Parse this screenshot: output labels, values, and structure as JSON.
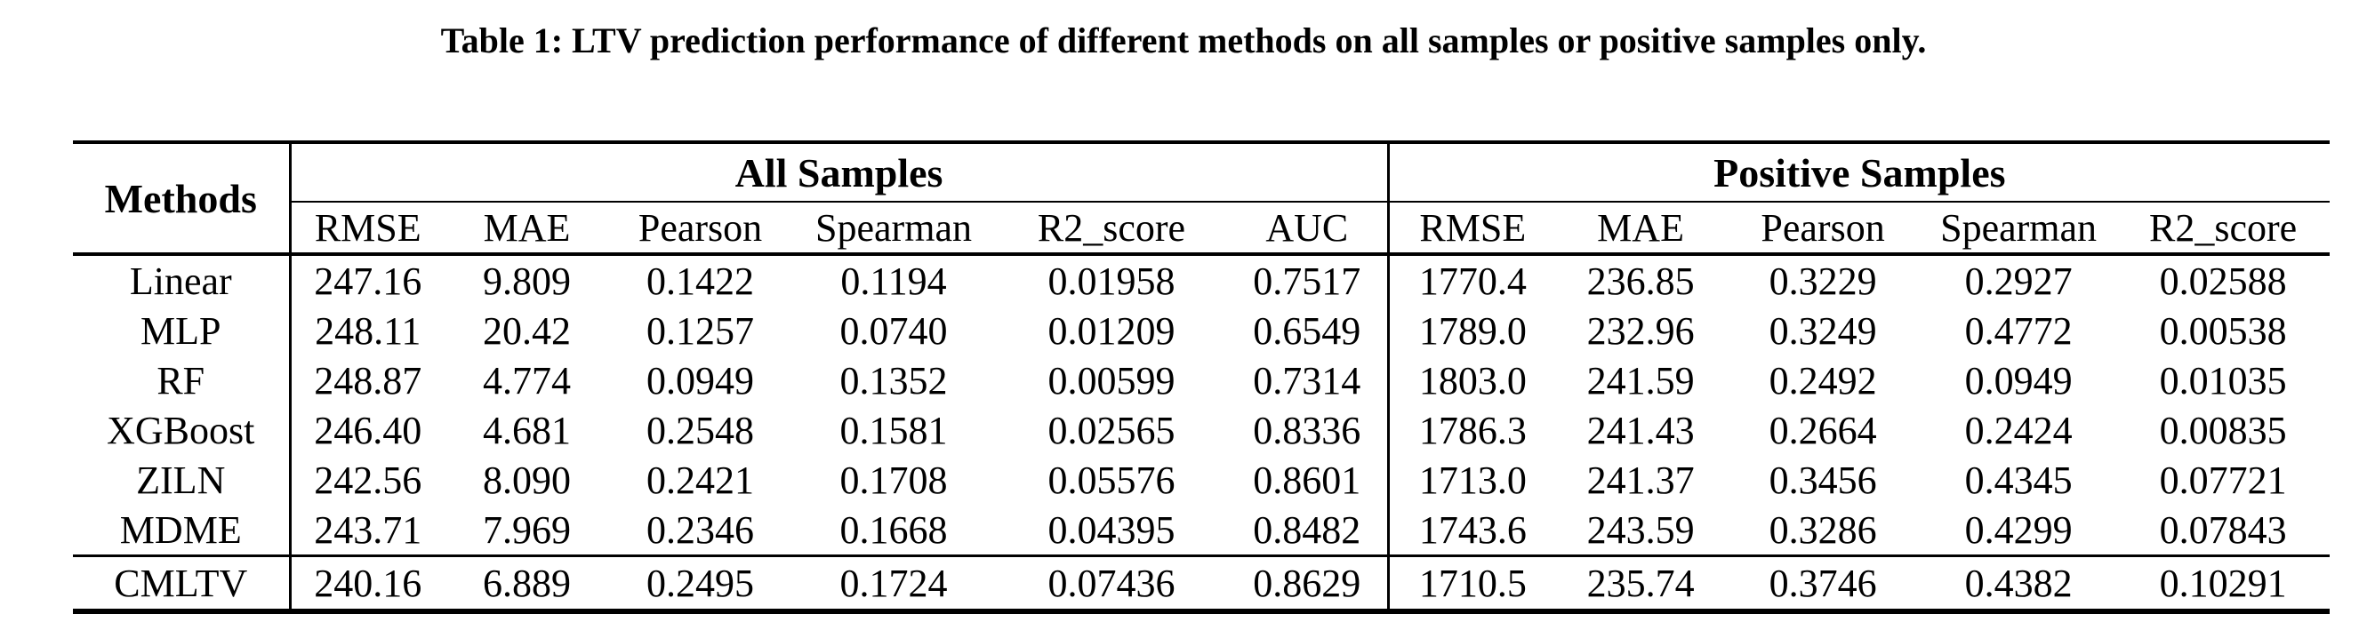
{
  "caption": "Table 1: LTV prediction performance of different methods on all samples or positive samples only.",
  "table": {
    "methods_header": "Methods",
    "groups": [
      {
        "label": "All Samples",
        "columns": [
          "RMSE",
          "MAE",
          "Pearson",
          "Spearman",
          "R2_score",
          "AUC"
        ]
      },
      {
        "label": "Positive Samples",
        "columns": [
          "RMSE",
          "MAE",
          "Pearson",
          "Spearman",
          "R2_score"
        ]
      }
    ],
    "rows": [
      {
        "method": "Linear",
        "cells": [
          {
            "v": "247.16"
          },
          {
            "v": "9.809"
          },
          {
            "v": "0.1422"
          },
          {
            "v": "0.1194"
          },
          {
            "v": "0.01958"
          },
          {
            "v": "0.7517"
          },
          {
            "v": "1770.4"
          },
          {
            "v": "236.85"
          },
          {
            "v": "0.3229"
          },
          {
            "v": "0.2927"
          },
          {
            "v": "0.02588"
          }
        ]
      },
      {
        "method": "MLP",
        "cells": [
          {
            "v": "248.11"
          },
          {
            "v": "20.42"
          },
          {
            "v": "0.1257"
          },
          {
            "v": "0.0740"
          },
          {
            "v": "0.01209"
          },
          {
            "v": "0.6549"
          },
          {
            "v": "1789.0"
          },
          {
            "v": "232.96",
            "b": true
          },
          {
            "v": "0.3249"
          },
          {
            "v": "0.4772"
          },
          {
            "v": "0.00538"
          }
        ]
      },
      {
        "method": "RF",
        "cells": [
          {
            "v": "248.87"
          },
          {
            "v": "4.774"
          },
          {
            "v": "0.0949"
          },
          {
            "v": "0.1352"
          },
          {
            "v": "0.00599"
          },
          {
            "v": "0.7314"
          },
          {
            "v": "1803.0"
          },
          {
            "v": "241.59"
          },
          {
            "v": "0.2492"
          },
          {
            "v": "0.0949"
          },
          {
            "v": "0.01035"
          }
        ]
      },
      {
        "method": "XGBoost",
        "cells": [
          {
            "v": "246.40"
          },
          {
            "v": "4.681",
            "b": true
          },
          {
            "v": "0.2548",
            "b": true
          },
          {
            "v": "0.1581"
          },
          {
            "v": "0.02565"
          },
          {
            "v": "0.8336"
          },
          {
            "v": "1786.3"
          },
          {
            "v": "241.43"
          },
          {
            "v": "0.2664"
          },
          {
            "v": "0.2424"
          },
          {
            "v": "0.00835"
          }
        ]
      },
      {
        "method": "ZILN",
        "cells": [
          {
            "v": "242.56"
          },
          {
            "v": "8.090"
          },
          {
            "v": "0.2421"
          },
          {
            "v": "0.1708"
          },
          {
            "v": "0.05576"
          },
          {
            "v": "0.8601"
          },
          {
            "v": "1713.0"
          },
          {
            "v": "241.37"
          },
          {
            "v": "0.3456"
          },
          {
            "v": "0.4345"
          },
          {
            "v": "0.07721"
          }
        ]
      },
      {
        "method": "MDME",
        "cells": [
          {
            "v": "243.71"
          },
          {
            "v": "7.969"
          },
          {
            "v": "0.2346"
          },
          {
            "v": "0.1668"
          },
          {
            "v": "0.04395"
          },
          {
            "v": "0.8482"
          },
          {
            "v": "1743.6"
          },
          {
            "v": "243.59"
          },
          {
            "v": "0.3286"
          },
          {
            "v": "0.4299"
          },
          {
            "v": "0.07843"
          }
        ]
      },
      {
        "method": "CMLTV",
        "separated": true,
        "cells": [
          {
            "v": "240.16",
            "b": true
          },
          {
            "v": "6.889"
          },
          {
            "v": "0.2495"
          },
          {
            "v": "0.1724",
            "b": true
          },
          {
            "v": "0.07436",
            "b": true
          },
          {
            "v": "0.8629",
            "b": true
          },
          {
            "v": "1710.5",
            "b": true
          },
          {
            "v": "235.74"
          },
          {
            "v": "0.3746",
            "b": true
          },
          {
            "v": "0.4382",
            "b": true
          },
          {
            "v": "0.10291",
            "b": true
          }
        ]
      }
    ]
  }
}
